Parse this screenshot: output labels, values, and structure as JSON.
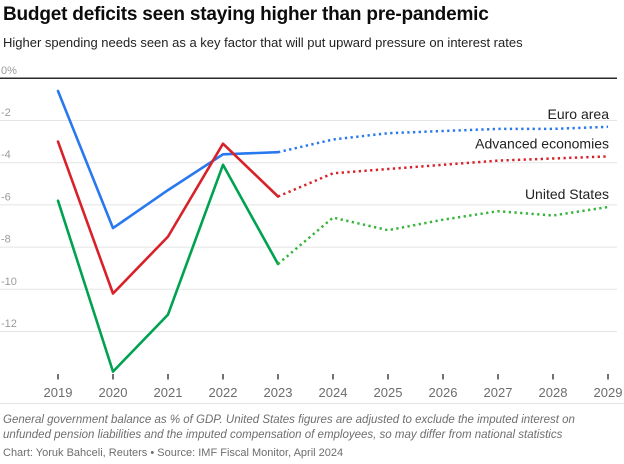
{
  "header": {
    "title": "Budget deficits seen staying higher than pre-pandemic",
    "subtitle": "Higher spending needs seen as a key factor that will put upward pressure on interest rates"
  },
  "footer": {
    "note": "General government balance as % of GDP. United States figures are adjusted to exclude the imputed interest on unfunded pension liabilities and the imputed compensation of employees, so may differ from national statistics",
    "credit": "Chart: Yoruk Bahceli, Reuters • Source: IMF Fiscal Monitor, April 2024"
  },
  "chart_data": {
    "type": "line",
    "x": [
      2019,
      2020,
      2021,
      2022,
      2023,
      2024,
      2025,
      2026,
      2027,
      2028,
      2029
    ],
    "series": [
      {
        "name": "Euro area",
        "color": "#2878f0",
        "projection_color": "#2878f0",
        "values": [
          -0.6,
          -7.1,
          -5.3,
          -3.6,
          -3.5,
          -2.9,
          -2.6,
          -2.5,
          -2.4,
          -2.4,
          -2.3
        ],
        "solid_points": 5
      },
      {
        "name": "Advanced economies",
        "color": "#d8222a",
        "projection_color": "#d8222a",
        "values": [
          -3.0,
          -10.2,
          -7.5,
          -3.1,
          -5.6,
          -4.5,
          -4.3,
          -4.1,
          -3.9,
          -3.8,
          -3.7
        ],
        "solid_points": 5
      },
      {
        "name": "United States",
        "color": "#00a251",
        "projection_color": "#38b43c",
        "values": [
          -5.8,
          -13.9,
          -11.2,
          -4.1,
          -8.8,
          -6.6,
          -7.2,
          -6.7,
          -6.3,
          -6.5,
          -6.1
        ],
        "solid_points": 5
      }
    ],
    "y_axis": {
      "ticks": [
        {
          "label": "0%",
          "value": 0
        },
        {
          "label": "-2",
          "value": -2
        },
        {
          "label": "-4",
          "value": -4
        },
        {
          "label": "-6",
          "value": -6
        },
        {
          "label": "-8",
          "value": -8
        },
        {
          "label": "-10",
          "value": -10
        },
        {
          "label": "-12",
          "value": -12
        }
      ],
      "ylim": [
        -14.6,
        0
      ],
      "grid": true
    },
    "x_axis": {
      "tick_labels": [
        "2019",
        "2020",
        "2021",
        "2022",
        "2023",
        "2024",
        "2025",
        "2026",
        "2027",
        "2028",
        "2029"
      ]
    },
    "style": {
      "historical": "solid",
      "projection": "dotted",
      "legend_position": "inline-right",
      "zero_line_color": "#2a2a2a",
      "gridline_color": "#e4e4e4",
      "y_label_color": "#9b9b9b",
      "x_label_color": "#6d6d6d",
      "legend_text_color": "#222222"
    }
  }
}
